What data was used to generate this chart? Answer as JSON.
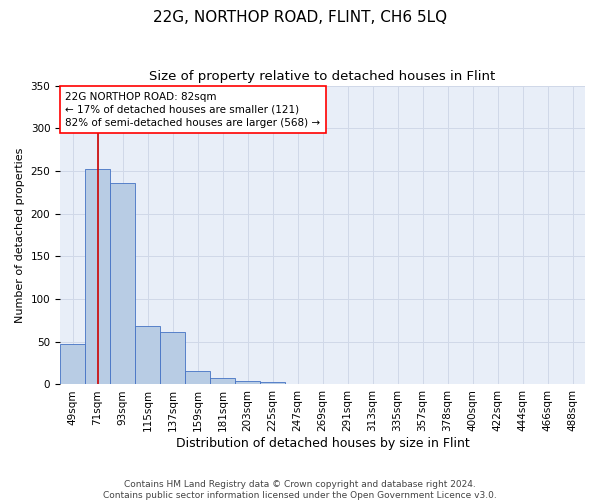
{
  "title": "22G, NORTHOP ROAD, FLINT, CH6 5LQ",
  "subtitle": "Size of property relative to detached houses in Flint",
  "xlabel": "Distribution of detached houses by size in Flint",
  "ylabel": "Number of detached properties",
  "footer": "Contains HM Land Registry data © Crown copyright and database right 2024.\nContains public sector information licensed under the Open Government Licence v3.0.",
  "categories": [
    "49sqm",
    "71sqm",
    "93sqm",
    "115sqm",
    "137sqm",
    "159sqm",
    "181sqm",
    "203sqm",
    "225sqm",
    "247sqm",
    "269sqm",
    "291sqm",
    "313sqm",
    "335sqm",
    "357sqm",
    "378sqm",
    "400sqm",
    "422sqm",
    "444sqm",
    "466sqm",
    "488sqm"
  ],
  "values": [
    47,
    252,
    236,
    69,
    62,
    16,
    8,
    4,
    3,
    0,
    0,
    0,
    0,
    0,
    0,
    0,
    0,
    0,
    0,
    0,
    0
  ],
  "bar_color": "#b8cce4",
  "bar_edge_color": "#4472c4",
  "annotation_box_text": "22G NORTHOP ROAD: 82sqm\n← 17% of detached houses are smaller (121)\n82% of semi-detached houses are larger (568) →",
  "red_line_color": "#cc0000",
  "grid_color": "#d0d8e8",
  "background_color": "#e8eef8",
  "ylim": [
    0,
    350
  ],
  "yticks": [
    0,
    50,
    100,
    150,
    200,
    250,
    300,
    350
  ],
  "title_fontsize": 11,
  "subtitle_fontsize": 9.5,
  "xlabel_fontsize": 9,
  "ylabel_fontsize": 8,
  "tick_fontsize": 7.5,
  "annotation_fontsize": 7.5,
  "footer_fontsize": 6.5,
  "bin_width": 22,
  "property_size": 82,
  "n_bins": 21
}
